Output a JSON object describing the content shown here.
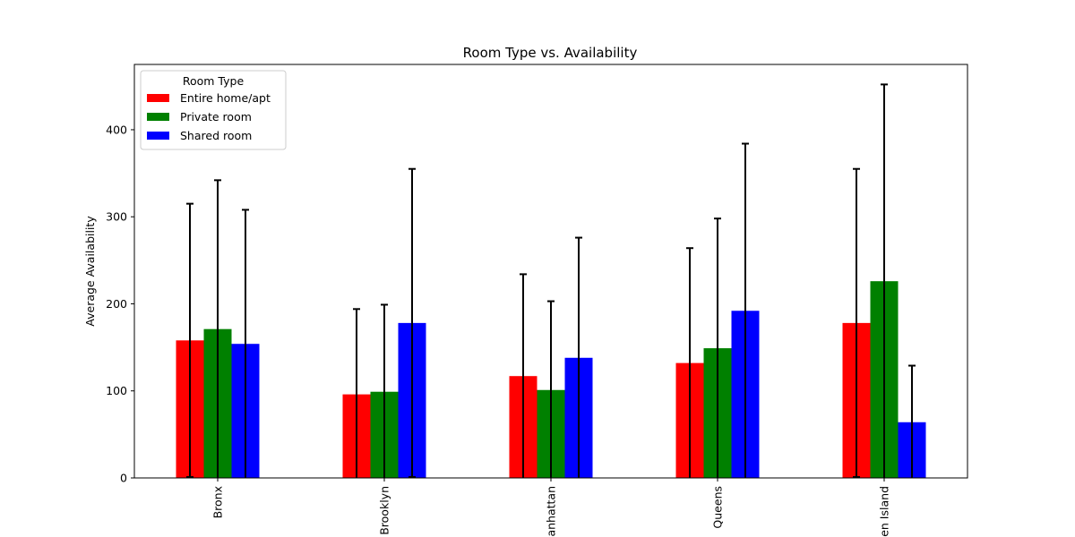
{
  "chart_data": {
    "type": "bar",
    "title": "Room Type vs. Availability",
    "xlabel": "",
    "ylabel": "Average Availability",
    "categories": [
      "Bronx",
      "Brooklyn",
      "Manhattan",
      "Queens",
      "Staten Island"
    ],
    "series": [
      {
        "name": "Entire home/apt",
        "color": "#ff0000",
        "values": [
          158,
          96,
          117,
          132,
          178
        ],
        "error": [
          157,
          98,
          117,
          132,
          177
        ]
      },
      {
        "name": "Private room",
        "color": "#008000",
        "values": [
          171,
          99,
          101,
          149,
          226
        ],
        "error": [
          171,
          100,
          102,
          149,
          226
        ]
      },
      {
        "name": "Shared room",
        "color": "#0000ff",
        "values": [
          154,
          178,
          138,
          192,
          64
        ],
        "error": [
          154,
          177,
          138,
          192,
          65
        ]
      }
    ],
    "ylim": [
      0,
      475
    ],
    "yticks": [
      0,
      100,
      200,
      300,
      400
    ],
    "grid": false,
    "legend": {
      "title": "Room Type",
      "position": "top-left"
    }
  }
}
